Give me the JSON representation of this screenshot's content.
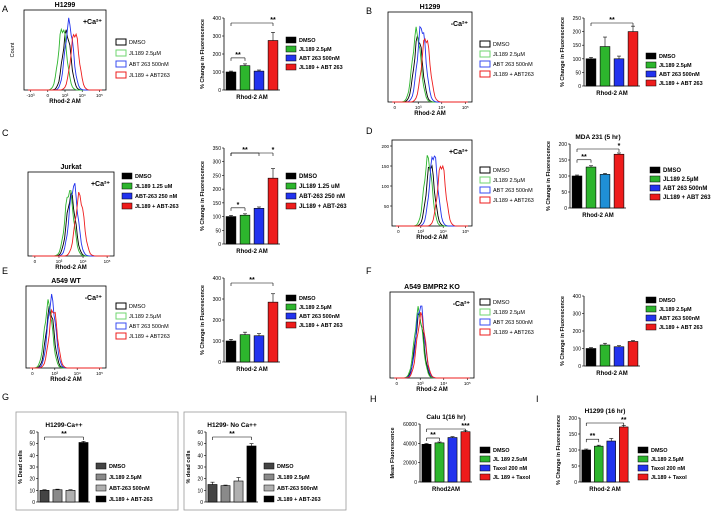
{
  "figure": {
    "panels": [
      {
        "id": "A",
        "letter": "A",
        "flow": {
          "title": "H1299",
          "cond": "+Ca²⁺",
          "ylabel": "Count",
          "xlabel": "Rhod-2 AM",
          "xticks": [
            "-10³",
            "0",
            "10³",
            "10⁴",
            "10⁵"
          ],
          "peaks": [
            0.52,
            0.47,
            0.55,
            0.62
          ]
        },
        "legend1": [
          "DMSO",
          "JL189 2.5µM",
          "ABT 263 500nM",
          "JL189 + ABT263"
        ],
        "legend1_style": "outline",
        "bars": {
          "ylabel": "% Change in Fluorescence",
          "xlabel": "Rhod-2 AM",
          "ymax": 400,
          "yticks": [
            "0",
            "100",
            "200",
            "300",
            "400"
          ],
          "values": [
            100,
            135,
            105,
            275
          ],
          "errors": [
            5,
            10,
            6,
            45
          ],
          "sig": [
            "**",
            "**"
          ],
          "legend": [
            "DMSO",
            "JL189 2.5µM",
            "ABT 263 500nM",
            "JL189 + ABT 263"
          ]
        }
      },
      {
        "id": "B",
        "letter": "B",
        "flow": {
          "title": "H1299",
          "cond": "-Ca²⁺",
          "ylabel": "",
          "xlabel": "Rhod-2 AM",
          "xticks": [
            "0",
            "10³",
            "10⁴",
            "10⁵"
          ],
          "peaks": [
            0.36,
            0.34,
            0.4,
            0.45
          ]
        },
        "legend1": [
          "DMSO",
          "JL189 2.5µM",
          "ABT 263 500nM",
          "JL189 + ABT263"
        ],
        "legend1_style": "outline",
        "bars": {
          "ylabel": "% Change in Fluorescence",
          "xlabel": "Rhod-2 AM",
          "ymax": 250,
          "yticks": [
            "0",
            "50",
            "100",
            "150",
            "200",
            "250"
          ],
          "values": [
            100,
            145,
            100,
            200
          ],
          "errors": [
            5,
            35,
            10,
            20
          ],
          "sig": [
            "**"
          ],
          "legend": [
            "DMSO",
            "JL189 2.5µM",
            "ABT 263 500nM",
            "JL189 + ABT 263"
          ]
        }
      },
      {
        "id": "C",
        "letter": "C",
        "flow": {
          "title": "Jurkat",
          "cond": "+Ca²⁺",
          "ylabel": "",
          "xlabel": "Rhod-2 AM",
          "xticks": [
            "0",
            "10³",
            "10⁴",
            "10⁵"
          ],
          "peaks": [
            0.5,
            0.48,
            0.53,
            0.6
          ]
        },
        "legend1": [
          "DMSO",
          "JL189 1.25 uM",
          "ABT-263 250 nM",
          "JL189 + ABT-263"
        ],
        "legend1_style": "solid",
        "bars": {
          "ylabel": "% Change in Fluorescence",
          "xlabel": "Rhod-2 AM",
          "ymax": 350,
          "yticks": [
            "0",
            "50",
            "100",
            "150",
            "200",
            "250",
            "300",
            "350"
          ],
          "values": [
            100,
            105,
            130,
            240
          ],
          "errors": [
            4,
            5,
            5,
            35
          ],
          "sig": [
            "*",
            "**",
            "*"
          ],
          "legend": [
            "DMSO",
            "JL189 1.25 uM",
            "ABT-263 250 nM",
            "JL189 + ABT-263"
          ]
        }
      },
      {
        "id": "D",
        "letter": "D",
        "flow": {
          "title": "",
          "cond": "+Ca²⁺",
          "ylabel": "",
          "xlabel": "Rhod-2 AM",
          "xticks": [
            "0",
            "10³",
            "10⁴",
            "10⁵"
          ],
          "yticks": [
            "50",
            "100",
            "150",
            "200"
          ],
          "peaks": [
            0.48,
            0.45,
            0.52,
            0.62
          ]
        },
        "legend1": [
          "DMSO",
          "JL189 2.5µM",
          "ABT 263 500nM",
          "JL189 + ABT263"
        ],
        "legend1_style": "outline",
        "bars": {
          "title": "MDA 231 (5 hr)",
          "ylabel": "% Change in Fluorescence",
          "xlabel": "Rhod-2 AM",
          "ymax": 200,
          "yticks": [
            "0",
            "50",
            "100",
            "150",
            "200"
          ],
          "values": [
            100,
            128,
            105,
            168
          ],
          "errors": [
            3,
            4,
            3,
            4
          ],
          "sig": [
            "**",
            "*"
          ],
          "legend": [
            "DMSO",
            "JL189 2.5µM",
            "ABT 263 500nM",
            "JL189 + ABT 263"
          ]
        }
      },
      {
        "id": "E",
        "letter": "E",
        "flow": {
          "title": "A549 WT",
          "cond": "-Ca²⁺",
          "ylabel": "",
          "xlabel": "Rhod-2 AM",
          "xticks": [
            "0",
            "10³",
            "10⁴",
            "10⁵"
          ],
          "peaks": [
            0.3,
            0.28,
            0.32,
            0.34
          ]
        },
        "legend1": [
          "DMSO",
          "JL189 2.5µM",
          "ABT 263 500nM",
          "JL189 + ABT263"
        ],
        "legend1_style": "outline",
        "bars": {
          "ylabel": "% Change in Fluorescence",
          "xlabel": "Rhod-2 AM",
          "ymax": 400,
          "yticks": [
            "0",
            "100",
            "200",
            "300",
            "400"
          ],
          "values": [
            100,
            130,
            125,
            285
          ],
          "errors": [
            8,
            12,
            10,
            40
          ],
          "sig": [
            "**"
          ],
          "legend": [
            "DMSO",
            "JL189 2.5µM",
            "ABT 263 500nM",
            "JL189 + ABT 263"
          ]
        }
      },
      {
        "id": "F",
        "letter": "F",
        "flow": {
          "title": "A549 BMPR2 KO",
          "cond": "-Ca²⁺",
          "ylabel": "",
          "xlabel": "Rhod-2 AM",
          "xticks": [
            "0",
            "10³",
            "10⁴",
            "10⁵"
          ],
          "peaks": [
            0.35,
            0.34,
            0.36,
            0.37
          ]
        },
        "legend1": [
          "DMSO",
          "JL189 2.5µM",
          "ABT 263 500nM",
          "JL189 + ABT263"
        ],
        "legend1_style": "outline",
        "bars": {
          "ylabel": "% Change in Fluorescence",
          "xlabel": "Rhod-2 AM",
          "ymax": 400,
          "yticks": [
            "0",
            "100",
            "200",
            "300",
            "400"
          ],
          "values": [
            100,
            120,
            110,
            140
          ],
          "errors": [
            5,
            10,
            6,
            5
          ],
          "sig": [],
          "legend": [
            "DMSO",
            "JL189 2.5µM",
            "ABT 263 500nM",
            "JL189 + ABT 263"
          ]
        }
      },
      {
        "id": "G",
        "letter": "G",
        "subplots": [
          {
            "title": "H1299-Ca++",
            "ylabel": "% Dead cells",
            "ymax": 60,
            "yticks": [
              "0",
              "10",
              "20",
              "30",
              "40",
              "50",
              "60"
            ],
            "values": [
              10,
              10.5,
              10,
              51
            ],
            "errors": [
              0.5,
              0.5,
              0.5,
              1
            ],
            "sig": [
              "**"
            ],
            "legend": [
              "DMSO",
              "JL189 2.5µM",
              "ABT-263 500nM",
              "JL189 + ABT-263"
            ]
          },
          {
            "title": "H1299- No Ca++",
            "ylabel": "% dead cells",
            "ymax": 60,
            "yticks": [
              "0",
              "10",
              "20",
              "30",
              "40",
              "50",
              "60"
            ],
            "values": [
              15,
              14,
              18,
              48
            ],
            "errors": [
              2,
              0.5,
              3,
              2
            ],
            "sig": [
              "**"
            ],
            "legend": [
              "DMSO",
              "JL189 2.5µM",
              "ABT-263 500nM",
              "JL189 + ABT-263"
            ]
          }
        ]
      },
      {
        "id": "H",
        "letter": "H",
        "bars": {
          "title": "Calu 1(16 hr)",
          "ylabel": "Mean Fluorescence",
          "xlabel": "Rhod2AM",
          "ymax": 60000,
          "yticks": [
            "0",
            "20000",
            "40000",
            "60000"
          ],
          "values": [
            39000,
            40500,
            46000,
            52000
          ],
          "errors": [
            800,
            900,
            900,
            1000
          ],
          "sig": [
            "**",
            "***"
          ],
          "legend": [
            "DMSO",
            "JL 189 2.5uM",
            "Taxol 200 nM",
            "JL 189 + Taxol"
          ]
        }
      },
      {
        "id": "I",
        "letter": "I",
        "bars": {
          "title": "H1299 (16 hr)",
          "ylabel": "% Change in Fluorescence",
          "xlabel": "Rhod-2 AM",
          "ymax": 200,
          "yticks": [
            "0",
            "50",
            "100",
            "150",
            "200"
          ],
          "values": [
            100,
            112,
            128,
            172
          ],
          "errors": [
            3,
            3,
            8,
            4
          ],
          "sig": [
            "**",
            "**"
          ],
          "legend": [
            "DMSO",
            "JL189 2.5µM",
            "Taxol 200 nM",
            "JL189 + Taxol"
          ]
        }
      }
    ]
  },
  "chart_data": [
    {
      "type": "bar",
      "panel": "A",
      "categories": [
        "DMSO",
        "JL189 2.5µM",
        "ABT 263 500nM",
        "JL189 + ABT 263"
      ],
      "values": [
        100,
        135,
        105,
        275
      ],
      "ylabel": "% Change in Fluorescence",
      "xlabel": "Rhod-2 AM",
      "ylim": [
        0,
        400
      ]
    },
    {
      "type": "bar",
      "panel": "B",
      "categories": [
        "DMSO",
        "JL189 2.5µM",
        "ABT 263 500nM",
        "JL189 + ABT 263"
      ],
      "values": [
        100,
        145,
        100,
        200
      ],
      "ylabel": "% Change in Fluorescence",
      "xlabel": "Rhod-2 AM",
      "ylim": [
        0,
        250
      ]
    },
    {
      "type": "bar",
      "panel": "C",
      "categories": [
        "DMSO",
        "JL189 1.25 uM",
        "ABT-263 250 nM",
        "JL189 + ABT-263"
      ],
      "values": [
        100,
        105,
        130,
        240
      ],
      "ylabel": "% Change in Fluorescence",
      "xlabel": "Rhod-2 AM",
      "ylim": [
        0,
        350
      ]
    },
    {
      "type": "bar",
      "panel": "D",
      "title": "MDA 231 (5 hr)",
      "categories": [
        "DMSO",
        "JL189 2.5µM",
        "ABT 263 500nM",
        "JL189 + ABT 263"
      ],
      "values": [
        100,
        128,
        105,
        168
      ],
      "ylabel": "% Change in Fluorescence",
      "xlabel": "Rhod-2 AM",
      "ylim": [
        0,
        200
      ]
    },
    {
      "type": "bar",
      "panel": "E",
      "categories": [
        "DMSO",
        "JL189 2.5µM",
        "ABT 263 500nM",
        "JL189 + ABT 263"
      ],
      "values": [
        100,
        130,
        125,
        285
      ],
      "ylabel": "% Change in Fluorescence",
      "xlabel": "Rhod-2 AM",
      "ylim": [
        0,
        400
      ]
    },
    {
      "type": "bar",
      "panel": "F",
      "categories": [
        "DMSO",
        "JL189 2.5µM",
        "ABT 263 500nM",
        "JL189 + ABT 263"
      ],
      "values": [
        100,
        120,
        110,
        140
      ],
      "ylabel": "% Change in Fluorescence",
      "xlabel": "Rhod-2 AM",
      "ylim": [
        0,
        400
      ]
    },
    {
      "type": "bar",
      "panel": "G",
      "title": "H1299-Ca++",
      "categories": [
        "DMSO",
        "JL189 2.5µM",
        "ABT-263 500nM",
        "JL189 + ABT-263"
      ],
      "values": [
        10,
        10.5,
        10,
        51
      ],
      "ylabel": "% Dead cells",
      "ylim": [
        0,
        60
      ]
    },
    {
      "type": "bar",
      "panel": "G",
      "title": "H1299- No Ca++",
      "categories": [
        "DMSO",
        "JL189 2.5µM",
        "ABT-263 500nM",
        "JL189 + ABT-263"
      ],
      "values": [
        15,
        14,
        18,
        48
      ],
      "ylabel": "% dead cells",
      "ylim": [
        0,
        60
      ]
    },
    {
      "type": "bar",
      "panel": "H",
      "title": "Calu 1(16 hr)",
      "categories": [
        "DMSO",
        "JL 189 2.5uM",
        "Taxol 200 nM",
        "JL 189 + Taxol"
      ],
      "values": [
        39000,
        40500,
        46000,
        52000
      ],
      "ylabel": "Mean Fluorescence",
      "xlabel": "Rhod2AM",
      "ylim": [
        0,
        60000
      ]
    },
    {
      "type": "bar",
      "panel": "I",
      "title": "H1299 (16 hr)",
      "categories": [
        "DMSO",
        "JL189 2.5µM",
        "Taxol 200 nM",
        "JL189 + Taxol"
      ],
      "values": [
        100,
        112,
        128,
        172
      ],
      "ylabel": "% Change in Fluorescence",
      "xlabel": "Rhod-2 AM",
      "ylim": [
        0,
        200
      ]
    }
  ],
  "colors": {
    "dmso": "#000000",
    "green": "#2db52d",
    "blue": "#2233ee",
    "red": "#ee1c1c",
    "gray1": "#444444",
    "gray2": "#8a8a8a",
    "gray3": "#b0b0b0",
    "blueD": "#1f8fd6"
  }
}
